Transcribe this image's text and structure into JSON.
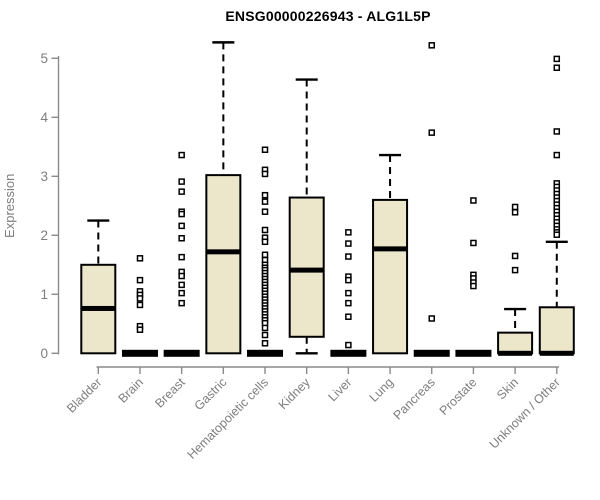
{
  "chart_data": {
    "type": "boxplot",
    "title": "ENSG00000226943 - ALG1L5P",
    "ylabel": "Expression",
    "xlabel": "",
    "ylim": [
      0,
      5
    ],
    "yticks": [
      0,
      1,
      2,
      3,
      4,
      5
    ],
    "grid": false,
    "legend": "none",
    "categories": [
      "Bladder",
      "Brain",
      "Breast",
      "Gastric",
      "Hematopoietic cells",
      "Kidney",
      "Liver",
      "Lung",
      "Pancreas",
      "Prostate",
      "Skin",
      "Unknown / Other"
    ],
    "boxes": [
      {
        "category": "Bladder",
        "low": 0,
        "q1": 0,
        "median": 0.76,
        "q3": 1.5,
        "high": 2.25,
        "outliers": []
      },
      {
        "category": "Brain",
        "low": 0,
        "q1": 0,
        "median": 0,
        "q3": 0,
        "high": 0,
        "outliers": [
          1.61,
          1.24,
          1.05,
          0.99,
          0.93,
          0.82,
          0.46,
          0.4
        ]
      },
      {
        "category": "Breast",
        "low": 0,
        "q1": 0,
        "median": 0,
        "q3": 0,
        "high": 0,
        "outliers": [
          3.36,
          2.91,
          2.74,
          2.4,
          2.36,
          2.16,
          1.95,
          1.63,
          1.38,
          1.31,
          1.16,
          1.02,
          0.85
        ]
      },
      {
        "category": "Gastric",
        "low": 0,
        "q1": 0,
        "median": 1.72,
        "q3": 3.02,
        "high": 5.27,
        "outliers": []
      },
      {
        "category": "Hematopoietic cells",
        "low": 0,
        "q1": 0,
        "median": 0,
        "q3": 0,
        "high": 0,
        "outliers": [
          3.45,
          3.11,
          3.04,
          2.68,
          2.57,
          2.4,
          2.09,
          1.96,
          1.89,
          1.67,
          1.58,
          1.5,
          1.45,
          1.41,
          1.36,
          1.31,
          1.26,
          1.21,
          1.16,
          1.11,
          1.06,
          1.01,
          0.96,
          0.91,
          0.86,
          0.81,
          0.76,
          0.71,
          0.66,
          0.61,
          0.56,
          0.51,
          0.43,
          0.31,
          0.17
        ]
      },
      {
        "category": "Kidney",
        "low": 0,
        "q1": 0.28,
        "median": 1.41,
        "q3": 2.64,
        "high": 4.64,
        "outliers": []
      },
      {
        "category": "Liver",
        "low": 0,
        "q1": 0,
        "median": 0,
        "q3": 0,
        "high": 0,
        "outliers": [
          2.05,
          1.86,
          1.64,
          1.3,
          1.24,
          1.02,
          0.85,
          0.62,
          0.14
        ]
      },
      {
        "category": "Lung",
        "low": 0,
        "q1": 0,
        "median": 1.77,
        "q3": 2.6,
        "high": 3.36,
        "outliers": []
      },
      {
        "category": "Pancreas",
        "low": 0,
        "q1": 0,
        "median": 0,
        "q3": 0,
        "high": 0,
        "outliers": [
          5.22,
          3.74,
          0.59
        ]
      },
      {
        "category": "Prostate",
        "low": 0,
        "q1": 0,
        "median": 0,
        "q3": 0,
        "high": 0,
        "outliers": [
          2.59,
          1.87,
          1.33,
          1.27,
          1.2,
          1.14
        ]
      },
      {
        "category": "Skin",
        "low": 0,
        "q1": 0,
        "median": 0,
        "q3": 0.35,
        "high": 0.75,
        "outliers": [
          2.48,
          2.39,
          1.65,
          1.41
        ]
      },
      {
        "category": "Unknown / Other",
        "low": 0,
        "q1": 0,
        "median": 0,
        "q3": 0.78,
        "high": 1.89,
        "outliers": [
          4.99,
          4.84,
          3.76,
          3.36,
          2.88,
          2.82,
          2.76,
          2.7,
          2.64,
          2.58,
          2.52,
          2.46,
          2.4,
          2.34,
          2.28,
          2.22,
          2.16,
          2.1,
          2.05,
          2.01
        ]
      }
    ],
    "colors": {
      "box_fill": "#ece7cb",
      "box_stroke": "#000000",
      "median": "#000000",
      "outlier_stroke": "#000000",
      "outlier_fill": "#ffffff",
      "axis_line": "#8a8a8a",
      "axis_text": "#7e7e7e",
      "title_text": "#000000",
      "background": "#ffffff"
    }
  }
}
